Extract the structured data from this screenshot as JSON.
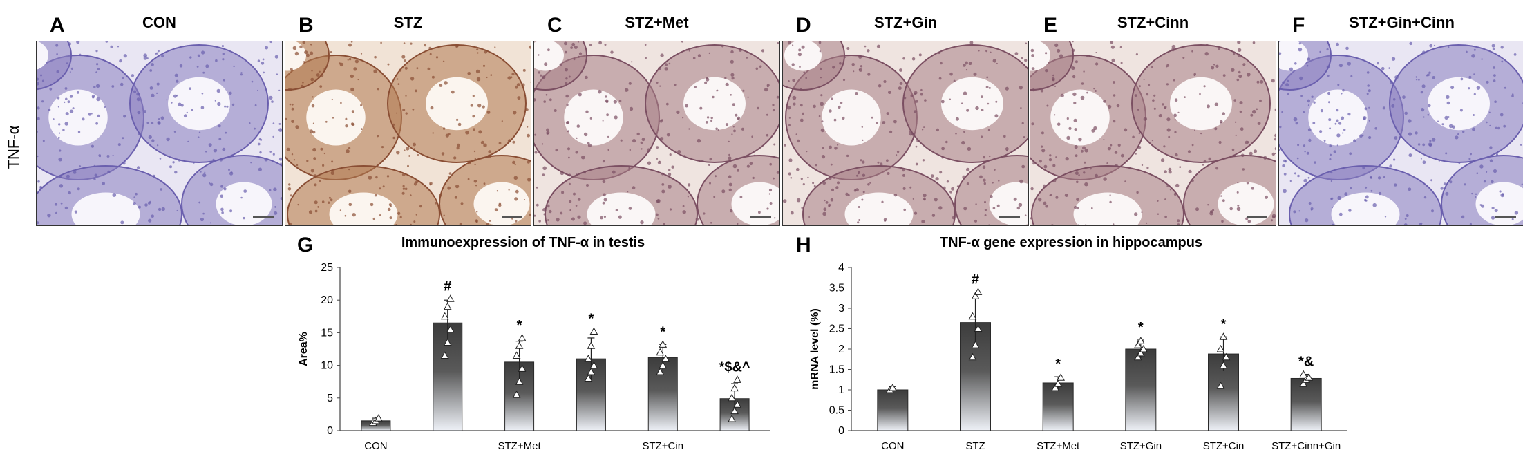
{
  "row_label": "TNF-α",
  "panels": [
    {
      "letter": "A",
      "title": "CON",
      "tone": "blue"
    },
    {
      "letter": "B",
      "title": "STZ",
      "tone": "brown"
    },
    {
      "letter": "C",
      "title": "STZ+Met",
      "tone": "mixed"
    },
    {
      "letter": "D",
      "title": "STZ+Gin",
      "tone": "mixed"
    },
    {
      "letter": "E",
      "title": "STZ+Cinn",
      "tone": "mixed"
    },
    {
      "letter": "F",
      "title": "STZ+Gin+Cinn",
      "tone": "blue"
    }
  ],
  "chart_data": [
    {
      "type": "bar",
      "letter": "G",
      "title": "Immunoexpression of TNF-α  in testis",
      "xlabel": "",
      "ylabel": "Area%",
      "ylim": [
        0,
        25
      ],
      "yticks": [
        "0",
        "5",
        "10",
        "15",
        "20",
        "25"
      ],
      "categories": [
        "CON",
        "",
        "STZ+Met",
        "",
        "STZ+Cin",
        ""
      ],
      "values": [
        1.5,
        16.5,
        10.5,
        11.0,
        11.2,
        4.9
      ],
      "errors": [
        0.4,
        3.5,
        3.2,
        3.2,
        2.0,
        2.3
      ],
      "significance": [
        "",
        "#",
        "*",
        "*",
        "*",
        "*$&^"
      ],
      "points": [
        [
          1.2,
          1.5,
          1.9
        ],
        [
          11.5,
          13.5,
          15.5,
          17.5,
          19.0,
          20.2
        ],
        [
          5.5,
          7.5,
          9.5,
          11.5,
          13.0,
          14.2
        ],
        [
          8.0,
          9.0,
          10.0,
          11.0,
          13.0,
          15.2
        ],
        [
          9.0,
          10.0,
          11.0,
          12.0,
          13.2
        ],
        [
          1.8,
          3.0,
          4.0,
          5.0,
          6.5,
          7.8
        ]
      ]
    },
    {
      "type": "bar",
      "letter": "H",
      "title": "TNF-α gene expression in hippocampus",
      "xlabel": "",
      "ylabel": "mRNA level (%)",
      "ylim": [
        0,
        4
      ],
      "yticks": [
        "0",
        "0.5",
        "1",
        "1.5",
        "2",
        "2.5",
        "3",
        "3.5",
        "4"
      ],
      "categories": [
        "CON",
        "STZ",
        "STZ+Met",
        "STZ+Gin",
        "STZ+Cin",
        "STZ+Cinn+Gin"
      ],
      "values": [
        1.0,
        2.65,
        1.17,
        2.0,
        1.88,
        1.28
      ],
      "errors": [
        0.08,
        0.62,
        0.15,
        0.22,
        0.42,
        0.1
      ],
      "significance": [
        "",
        "#",
        "*",
        "*",
        "*",
        "*&"
      ],
      "points": [
        [
          1.0,
          1.05
        ],
        [
          1.8,
          2.1,
          2.5,
          2.8,
          3.3,
          3.4
        ],
        [
          1.05,
          1.15,
          1.3
        ],
        [
          1.8,
          1.9,
          2.0,
          2.1,
          2.2
        ],
        [
          1.1,
          1.6,
          1.8,
          2.0,
          2.3
        ],
        [
          1.15,
          1.25,
          1.3,
          1.38
        ]
      ]
    }
  ]
}
